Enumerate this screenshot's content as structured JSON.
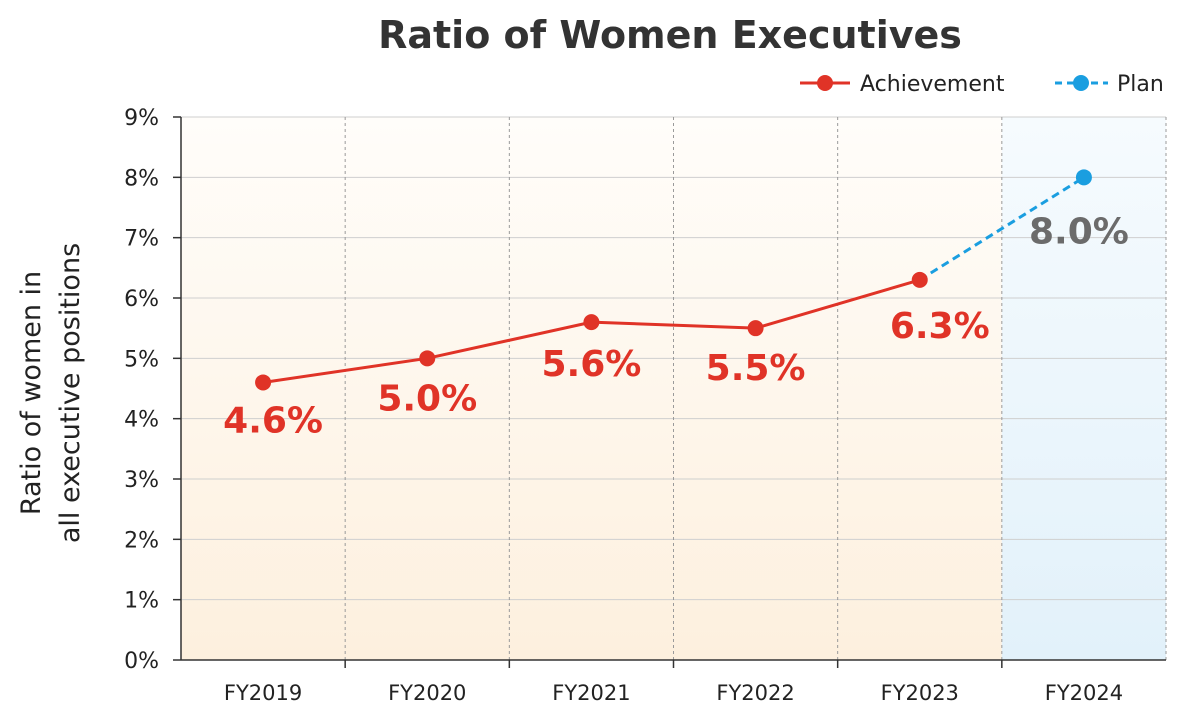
{
  "chart_data": {
    "type": "line",
    "title": "Ratio of Women Executives",
    "ylabel_lines": [
      "Ratio of women in",
      "all executive positions"
    ],
    "categories": [
      "FY2019",
      "FY2020",
      "FY2021",
      "FY2022",
      "FY2023",
      "FY2024"
    ],
    "y_ticks": [
      "0%",
      "1%",
      "2%",
      "3%",
      "4%",
      "5%",
      "6%",
      "7%",
      "8%",
      "9%"
    ],
    "ylim": [
      0,
      9
    ],
    "grid": true,
    "legend_position": "top-right",
    "series": [
      {
        "name": "Achievement",
        "color": "#e03327",
        "style": "solid",
        "points": [
          {
            "x": "FY2019",
            "y": 4.6,
            "label": "4.6%"
          },
          {
            "x": "FY2020",
            "y": 5.0,
            "label": "5.0%"
          },
          {
            "x": "FY2021",
            "y": 5.6,
            "label": "5.6%"
          },
          {
            "x": "FY2022",
            "y": 5.5,
            "label": "5.5%"
          },
          {
            "x": "FY2023",
            "y": 6.3,
            "label": "6.3%"
          }
        ]
      },
      {
        "name": "Plan",
        "color": "#1a9ee0",
        "style": "dashed",
        "label_color": "#6b6b6b",
        "points": [
          {
            "x": "FY2023",
            "y": 6.3,
            "label": ""
          },
          {
            "x": "FY2024",
            "y": 8.0,
            "label": "8.0%"
          }
        ]
      }
    ],
    "colors": {
      "achievement_bg": "#fdf0de",
      "plan_bg": "#e2f1fa"
    }
  }
}
